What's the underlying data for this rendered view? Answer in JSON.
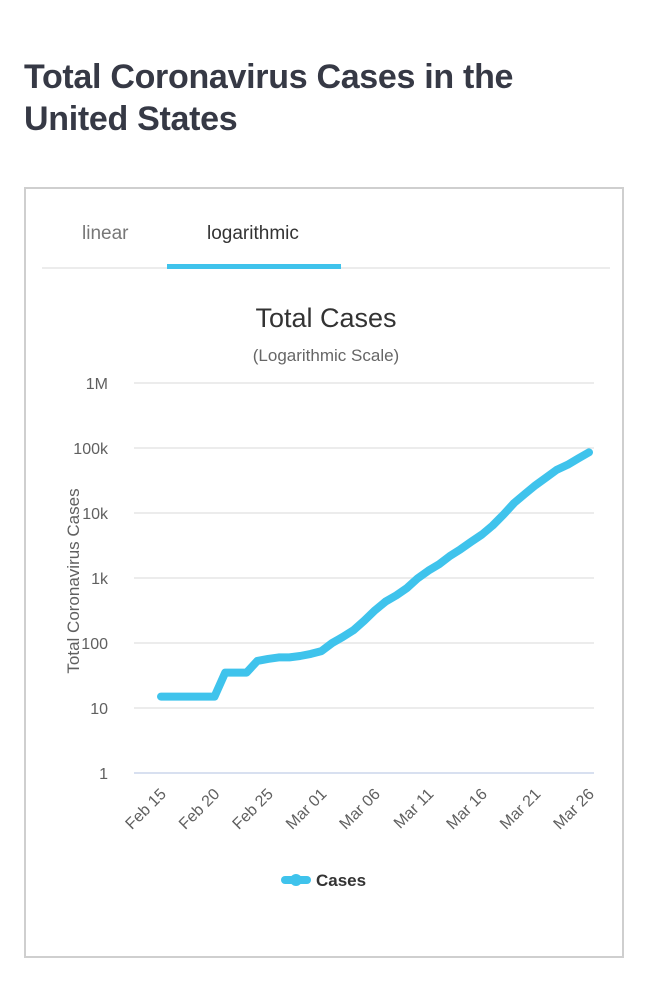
{
  "page": {
    "title": "Total Coronavirus Cases in the United States"
  },
  "tabs": [
    {
      "label": "linear",
      "active": false
    },
    {
      "label": "logarithmic",
      "active": true
    }
  ],
  "colors": {
    "accent": "#3fc3ec",
    "grid": "#e6e6e6",
    "title_text": "#363945"
  },
  "chart_data": {
    "type": "line",
    "title": "Total Cases",
    "subtitle": "(Logarithmic Scale)",
    "xlabel": "",
    "ylabel": "Total Coronavirus Cases",
    "yscale": "log",
    "ylim": [
      1,
      1000000
    ],
    "yticks": [
      {
        "value": 1,
        "label": "1"
      },
      {
        "value": 10,
        "label": "10"
      },
      {
        "value": 100,
        "label": "100"
      },
      {
        "value": 1000,
        "label": "1k"
      },
      {
        "value": 10000,
        "label": "10k"
      },
      {
        "value": 100000,
        "label": "100k"
      },
      {
        "value": 1000000,
        "label": "1M"
      }
    ],
    "xticks": [
      "Feb 15",
      "Feb 20",
      "Feb 25",
      "Mar 01",
      "Mar 06",
      "Mar 11",
      "Mar 16",
      "Mar 21",
      "Mar 26"
    ],
    "xtick_step_days": 5,
    "grid": true,
    "legend": {
      "position": "bottom-center",
      "entries": [
        "Cases"
      ]
    },
    "series": [
      {
        "name": "Cases",
        "color": "#3fc3ec",
        "x": [
          "Feb 15",
          "Feb 16",
          "Feb 17",
          "Feb 18",
          "Feb 19",
          "Feb 20",
          "Feb 21",
          "Feb 22",
          "Feb 23",
          "Feb 24",
          "Feb 25",
          "Feb 26",
          "Feb 27",
          "Feb 28",
          "Feb 29",
          "Mar 01",
          "Mar 02",
          "Mar 03",
          "Mar 04",
          "Mar 05",
          "Mar 06",
          "Mar 07",
          "Mar 08",
          "Mar 09",
          "Mar 10",
          "Mar 11",
          "Mar 12",
          "Mar 13",
          "Mar 14",
          "Mar 15",
          "Mar 16",
          "Mar 17",
          "Mar 18",
          "Mar 19",
          "Mar 20",
          "Mar 21",
          "Mar 22",
          "Mar 23",
          "Mar 24",
          "Mar 25",
          "Mar 26"
        ],
        "values": [
          15,
          15,
          15,
          15,
          15,
          15,
          35,
          35,
          35,
          53,
          57,
          60,
          60,
          63,
          68,
          75,
          100,
          124,
          158,
          221,
          319,
          435,
          541,
          704,
          994,
          1301,
          1630,
          2183,
          2770,
          3613,
          4661,
          6427,
          9415,
          14250,
          19624,
          26747,
          35206,
          46442,
          55231,
          69194,
          85991
        ]
      }
    ]
  }
}
